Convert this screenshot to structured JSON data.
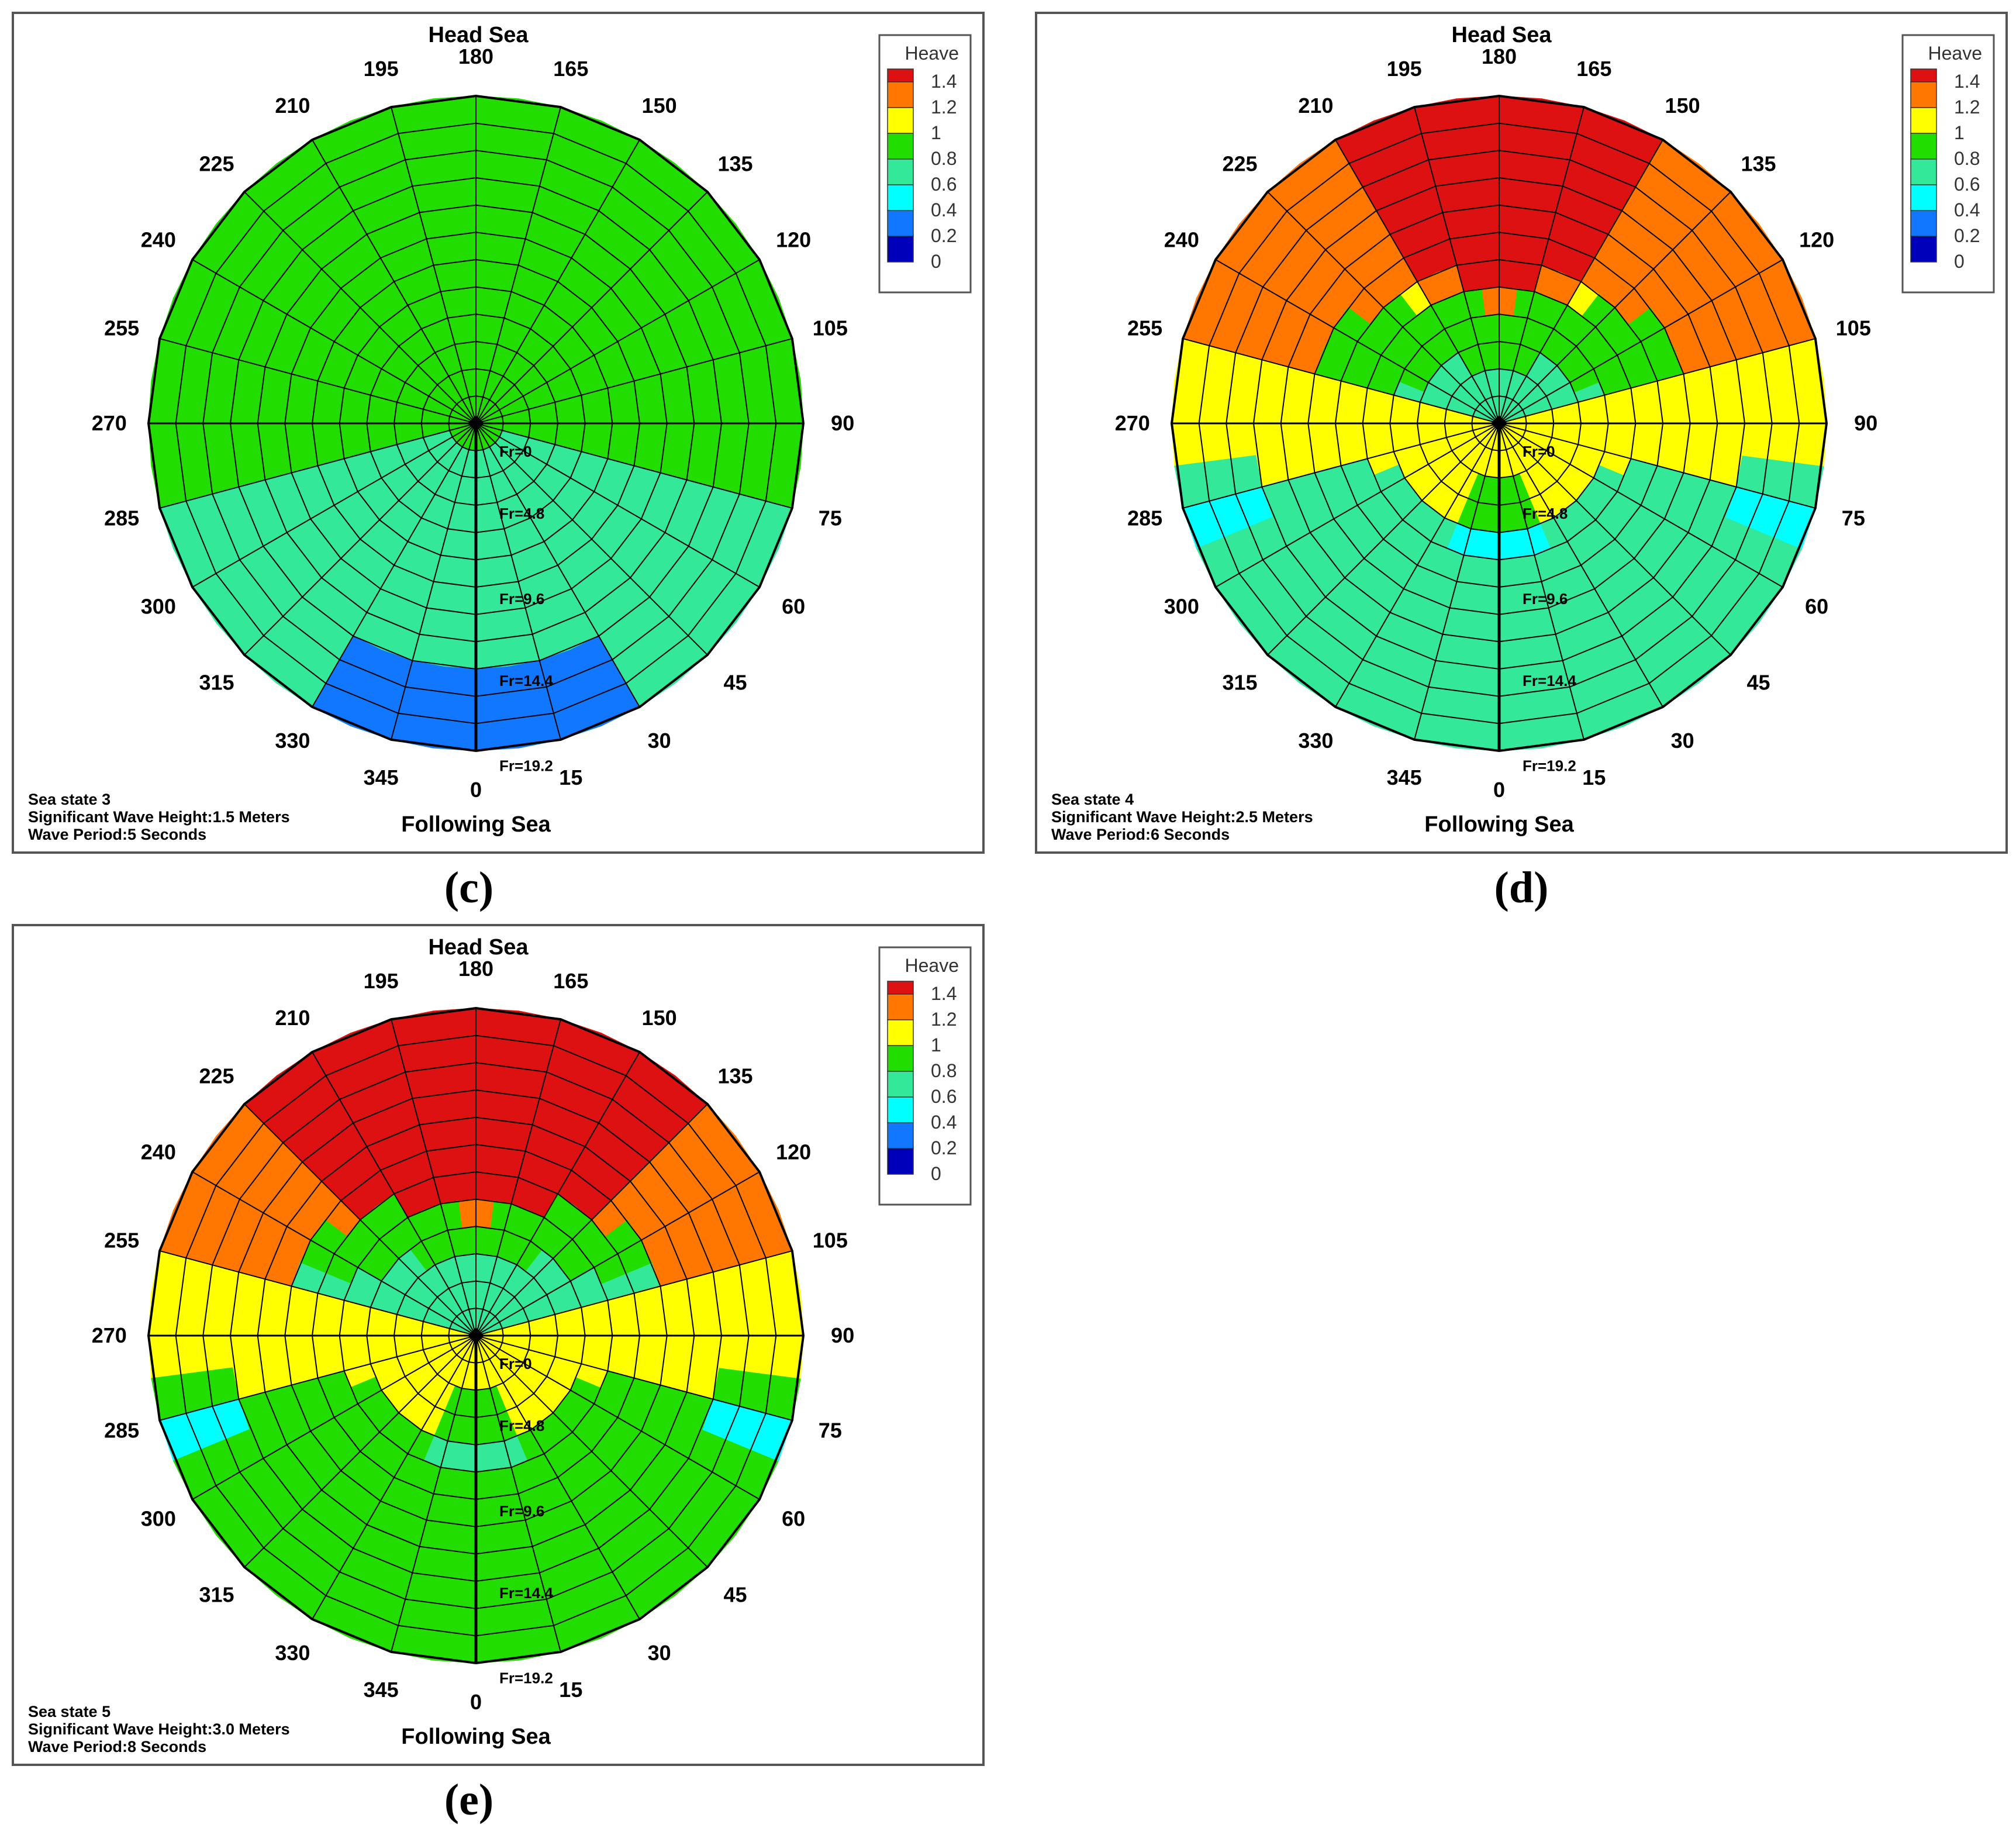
{
  "chart_data": [
    {
      "type": "heatmap",
      "panel_label": "c",
      "title": "Head Sea",
      "bottom_label": "Following Sea",
      "angle_labels": [
        "180",
        "165",
        "150",
        "135",
        "120",
        "105",
        "90",
        "75",
        "60",
        "45",
        "30",
        "15",
        "0",
        "345",
        "330",
        "315",
        "300",
        "285",
        "270",
        "255",
        "240",
        "225",
        "210",
        "195"
      ],
      "radial_labels": [
        "Fr=0",
        "Fr=4.8",
        "Fr=9.6",
        "Fr=14.4",
        "Fr=19.2"
      ],
      "legend": {
        "title": "Heave",
        "levels": [
          "1.4",
          "1.2",
          "1",
          "0.8",
          "0.6",
          "0.4",
          "0.2",
          "0"
        ]
      },
      "info": [
        "Sea state 3",
        "Significant Wave Height:1.5 Meters",
        "Wave Period:5 Seconds"
      ],
      "field": {
        "base": 0.85,
        "side_drop": 0.25,
        "center_bump": 0.05,
        "bow_boost": 0.0,
        "stern_drop": 0.35,
        "stern_start": 0.78,
        "stern_width": 30,
        "notch": 0.0
      }
    },
    {
      "type": "heatmap",
      "panel_label": "d",
      "title": "Head Sea",
      "bottom_label": "Following Sea",
      "angle_labels": [
        "180",
        "165",
        "150",
        "135",
        "120",
        "105",
        "90",
        "75",
        "60",
        "45",
        "30",
        "15",
        "0",
        "345",
        "330",
        "315",
        "300",
        "285",
        "270",
        "255",
        "240",
        "225",
        "210",
        "195"
      ],
      "radial_labels": [
        "Fr=0",
        "Fr=4.8",
        "Fr=9.6",
        "Fr=14.4",
        "Fr=19.2"
      ],
      "legend": {
        "title": "Heave",
        "levels": [
          "1.4",
          "1.2",
          "1",
          "0.8",
          "0.6",
          "0.4",
          "0.2",
          "0"
        ]
      },
      "info": [
        "Sea state 4",
        "Significant Wave Height:2.5 Meters",
        "Wave Period:6 Seconds"
      ],
      "field": {
        "base": 1.1,
        "side_drop": 0.0,
        "center_bump": 0.0,
        "bow_boost": 0.35,
        "stern_drop": 0.35,
        "stern_start": 0.0,
        "stern_width": 0,
        "notch": 0.25
      }
    },
    {
      "type": "heatmap",
      "panel_label": "e",
      "title": "Head Sea",
      "bottom_label": "Following Sea",
      "angle_labels": [
        "180",
        "165",
        "150",
        "135",
        "120",
        "105",
        "90",
        "75",
        "60",
        "45",
        "30",
        "15",
        "0",
        "345",
        "330",
        "315",
        "300",
        "285",
        "270",
        "255",
        "240",
        "225",
        "210",
        "195"
      ],
      "radial_labels": [
        "Fr=0",
        "Fr=4.8",
        "Fr=9.6",
        "Fr=14.4",
        "Fr=19.2"
      ],
      "legend": {
        "title": "Heave",
        "levels": [
          "1.4",
          "1.2",
          "1",
          "0.8",
          "0.6",
          "0.4",
          "0.2",
          "0"
        ]
      },
      "info": [
        "Sea state 5",
        "Significant Wave Height:3.0 Meters",
        "Wave Period:8 Seconds"
      ],
      "field": {
        "base": 1.1,
        "side_drop": 0.0,
        "center_bump": 0.0,
        "bow_boost": 0.45,
        "stern_drop": 0.3,
        "stern_start": 0.0,
        "stern_width": 0,
        "notch": 0.15
      }
    }
  ],
  "colors": {
    "levels": [
      "#dd1111",
      "#ff7700",
      "#ffff00",
      "#22dd00",
      "#33e899",
      "#00ffff",
      "#1177ff",
      "#0000bb"
    ],
    "grid": "#000000",
    "frame": "#555555",
    "top_rule": "#aa2222"
  },
  "captions": [
    "(c)",
    "(d)",
    "(e)"
  ]
}
